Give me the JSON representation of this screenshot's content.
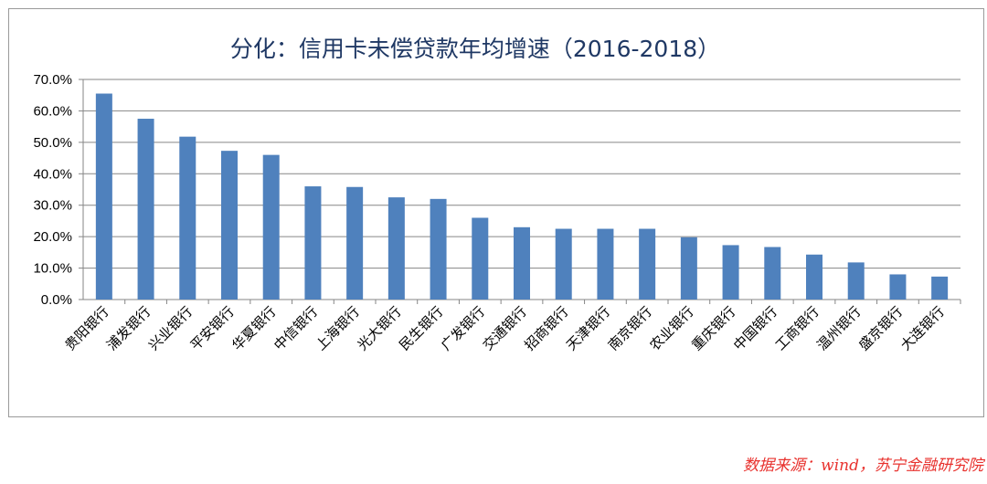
{
  "chart_data": {
    "type": "bar",
    "title": "分化：信用卡未偿贷款年均增速（2016-2018）",
    "categories": [
      "贵阳银行",
      "浦发银行",
      "兴业银行",
      "平安银行",
      "华夏银行",
      "中信银行",
      "上海银行",
      "光大银行",
      "民生银行",
      "广发银行",
      "交通银行",
      "招商银行",
      "天津银行",
      "南京银行",
      "农业银行",
      "重庆银行",
      "中国银行",
      "工商银行",
      "温州银行",
      "盛京银行",
      "大连银行"
    ],
    "values": [
      65.5,
      57.5,
      51.8,
      47.3,
      46.0,
      36.0,
      35.8,
      32.5,
      32.0,
      26.0,
      23.0,
      22.5,
      22.5,
      22.5,
      19.8,
      17.3,
      16.7,
      14.3,
      11.8,
      8.0,
      7.3
    ],
    "y_ticks": [
      "0.0%",
      "10.0%",
      "20.0%",
      "30.0%",
      "40.0%",
      "50.0%",
      "60.0%",
      "70.0%"
    ],
    "ylim": [
      0,
      70
    ],
    "grid": true,
    "bar_color": "#4f81bd"
  },
  "source_note": "数据来源：wind，苏宁金融研究院"
}
